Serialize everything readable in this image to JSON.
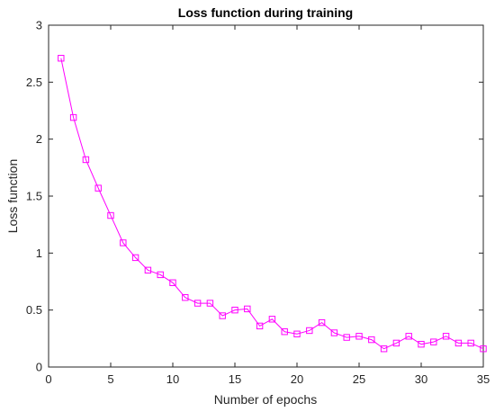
{
  "chart_data": {
    "type": "line",
    "title": "Loss function during training",
    "xlabel": "Number of epochs",
    "ylabel": "Loss function",
    "xlim": [
      0,
      35
    ],
    "ylim": [
      0,
      3
    ],
    "xticks": [
      "0",
      "5",
      "10",
      "15",
      "20",
      "25",
      "30",
      "35"
    ],
    "yticks": [
      "0",
      "0.5",
      "1",
      "1.5",
      "2",
      "2.5",
      "3"
    ],
    "grid": false,
    "line_color": "#ff00ff",
    "marker": "square",
    "series": [
      {
        "x": [
          1,
          2,
          3,
          4,
          5,
          6,
          7,
          8,
          9,
          10,
          11,
          12,
          13,
          14,
          15,
          16,
          17,
          18,
          19,
          20,
          21,
          22,
          23,
          24,
          25,
          26,
          27,
          28,
          29,
          30,
          31,
          32,
          33,
          34,
          35
        ],
        "values": [
          2.71,
          2.19,
          1.82,
          1.57,
          1.33,
          1.09,
          0.96,
          0.85,
          0.81,
          0.74,
          0.61,
          0.56,
          0.56,
          0.45,
          0.5,
          0.51,
          0.36,
          0.42,
          0.31,
          0.29,
          0.32,
          0.39,
          0.3,
          0.26,
          0.27,
          0.24,
          0.16,
          0.21,
          0.27,
          0.2,
          0.22,
          0.27,
          0.21,
          0.21,
          0.16
        ]
      }
    ]
  }
}
